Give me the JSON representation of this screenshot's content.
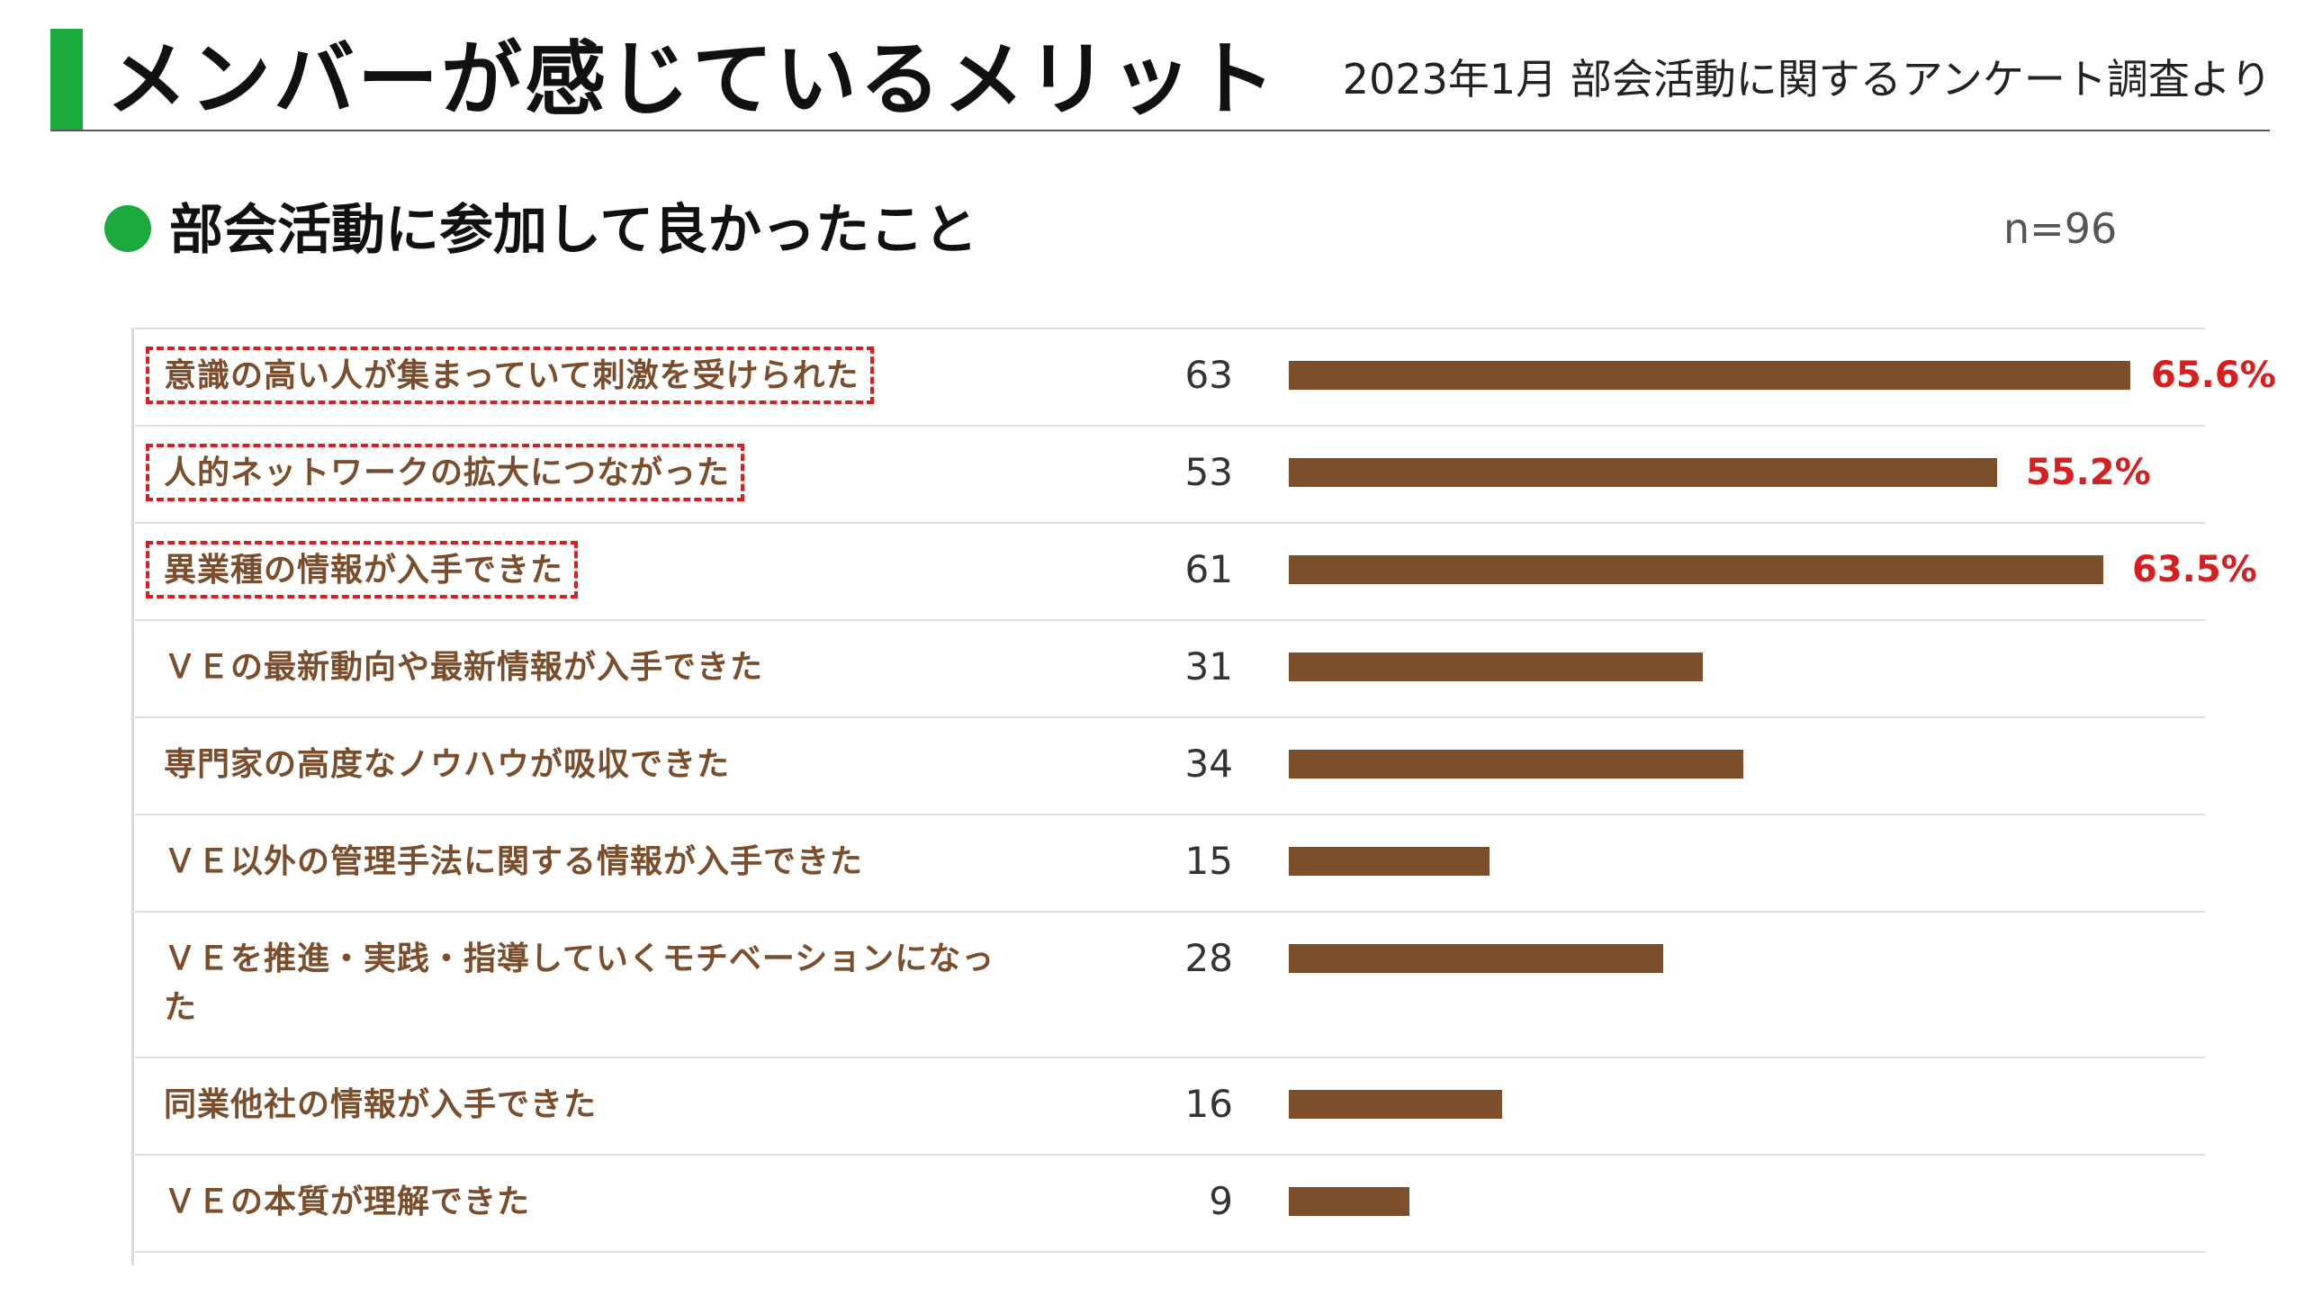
{
  "header": {
    "title": "メンバーが感じているメリット",
    "source": "2023年1月 部会活動に関するアンケート調査より"
  },
  "section": {
    "title": "部会活動に参加して良かったこと",
    "sample_size": "n=96"
  },
  "colors": {
    "accent_green": "#1aaa3e",
    "bar_brown": "#7b4f2c",
    "label_brown": "#7a4e2d",
    "highlight_red": "#d81e1e"
  },
  "chart_data": {
    "type": "bar",
    "orientation": "horizontal",
    "categories": [
      "意識の高い人が集まっていて刺激を受けられた",
      "人的ネットワークの拡大につながった",
      "異業種の情報が入手できた",
      "ＶＥの最新動向や最新情報が入手できた",
      "専門家の高度なノウハウが吸収できた",
      "ＶＥ以外の管理手法に関する情報が入手できた",
      "ＶＥを推進・実践・指導していくモチベーションになった",
      "同業他社の情報が入手できた",
      "ＶＥの本質が理解できた"
    ],
    "values": [
      63,
      53,
      61,
      31,
      34,
      15,
      28,
      16,
      9
    ],
    "percent_labels": [
      "65.6%",
      "55.2%",
      "63.5%",
      "",
      "",
      "",
      "",
      "",
      ""
    ],
    "highlighted": [
      true,
      true,
      true,
      false,
      false,
      false,
      false,
      false,
      false
    ],
    "xlim": [
      0,
      63
    ],
    "grid": false,
    "legend": "none"
  }
}
